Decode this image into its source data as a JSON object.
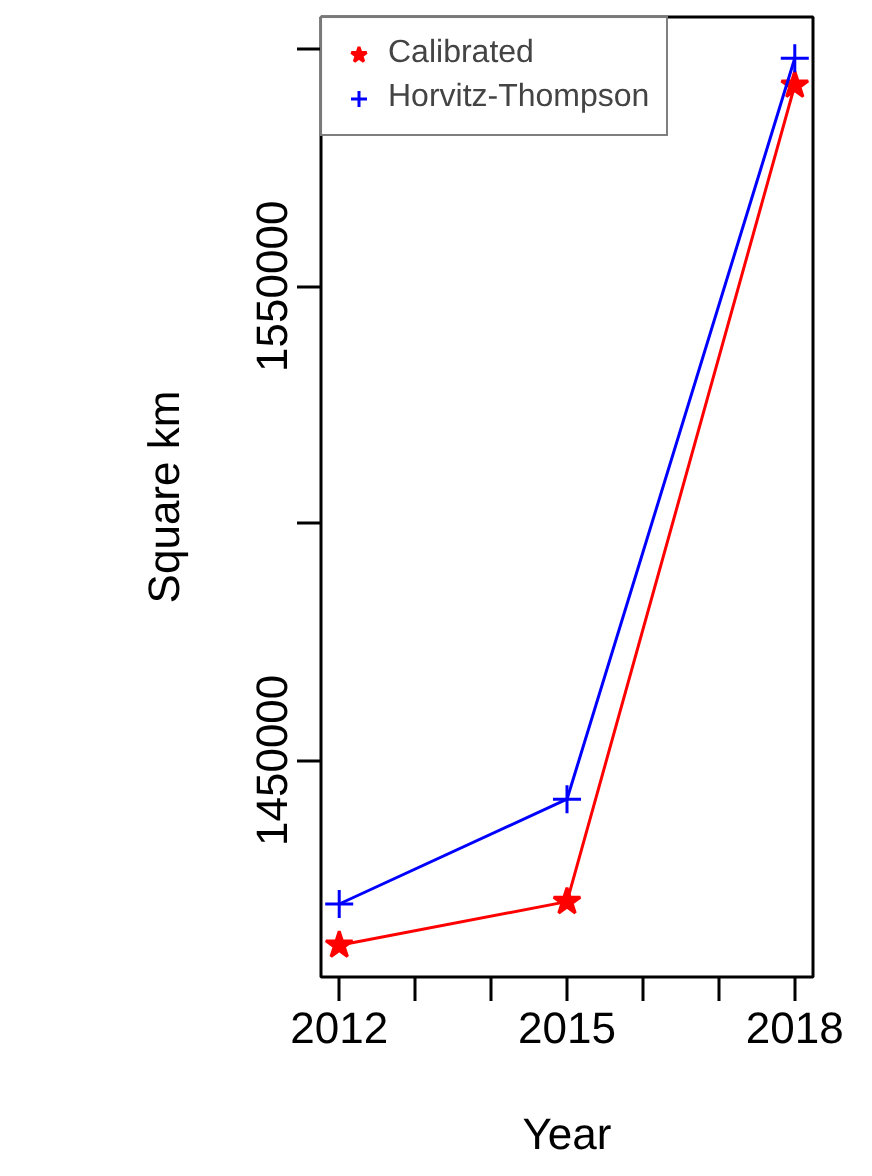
{
  "chart_data": {
    "type": "line",
    "xlabel": "Year",
    "ylabel": "Square km",
    "x": [
      2012,
      2015,
      2018
    ],
    "series": [
      {
        "name": "Calibrated",
        "color": "#ff0000",
        "marker": "star",
        "values": [
          1411000,
          1420200,
          1592400
        ]
      },
      {
        "name": "Horvitz-Thompson",
        "color": "#0000ff",
        "marker": "cross",
        "values": [
          1419700,
          1441800,
          1598100
        ]
      }
    ],
    "xlim": [
      2011.76,
      2018.24
    ],
    "xticks": [
      2012,
      {
        "value": 2013,
        "label": null
      },
      {
        "value": 2014,
        "label": null
      },
      2015,
      {
        "value": 2016,
        "label": null
      },
      {
        "value": 2017,
        "label": null
      },
      2018
    ],
    "ylim": [
      1404300,
      1606800
    ],
    "yticks": [
      1450000,
      {
        "value": 1500000,
        "label": null
      },
      1550000,
      {
        "value": 1600000,
        "label": null
      }
    ],
    "grid": false,
    "legend": "top left",
    "line_style": "solid"
  }
}
